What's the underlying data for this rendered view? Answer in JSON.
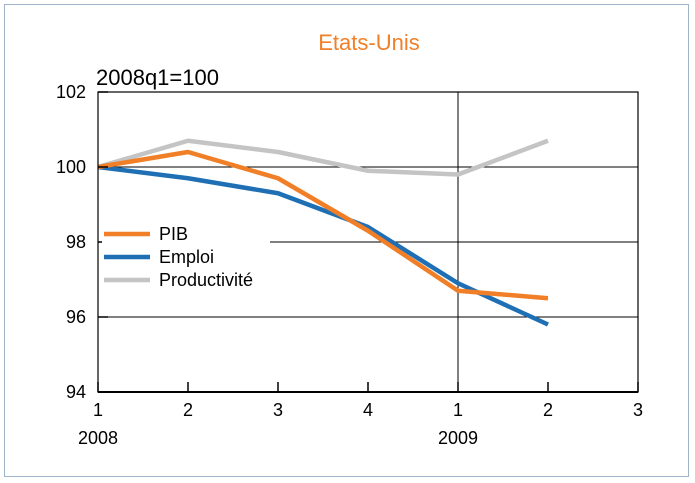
{
  "chart_data": {
    "type": "line",
    "title": "Etats-Unis",
    "unit_label": "2008q1=100",
    "x_ticks": [
      "1",
      "2",
      "3",
      "4",
      "1",
      "2",
      "3"
    ],
    "year_labels": [
      {
        "label": "2008",
        "tick_index": 0
      },
      {
        "label": "2009",
        "tick_index": 4
      }
    ],
    "categories": [
      "2008q1",
      "2008q2",
      "2008q3",
      "2008q4",
      "2009q1",
      "2009q2"
    ],
    "ylim": [
      94,
      102
    ],
    "yticks": [
      94,
      96,
      98,
      100,
      102
    ],
    "grid": true,
    "legend_position": "left",
    "series": [
      {
        "name": "PIB",
        "color": "#f07f27",
        "values": [
          100,
          100.4,
          99.7,
          98.3,
          96.7,
          96.5
        ]
      },
      {
        "name": "Emploi",
        "color": "#1f6fb5",
        "values": [
          100,
          99.7,
          99.3,
          98.4,
          96.9,
          95.8
        ]
      },
      {
        "name": "Productivité",
        "color": "#c4c4c4",
        "values": [
          100,
          100.7,
          100.4,
          99.9,
          99.8,
          100.7
        ]
      }
    ]
  }
}
